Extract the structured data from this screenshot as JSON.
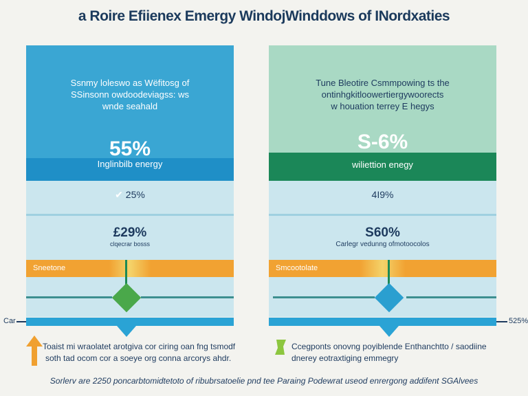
{
  "title": "a Roire Efiienex Emergy WindojWinddows of INordxaties",
  "left": {
    "color_top": "#3aa6d3",
    "color_band": "#1f8fc7",
    "description": [
      "Ssnmy loleswo as Wëfitosg of",
      "SSinsonn owdoodeviagss: ws",
      "wnde seahald"
    ],
    "big_stat": "55%",
    "band_label": "Inglinbilb energy",
    "row1": "25%",
    "row2_value": "£29%",
    "row2_label": "clqecrar bosss",
    "orange_label": "Sneetone",
    "marker_color": "#4aa84a"
  },
  "right": {
    "color_top": "#a9d9c4",
    "color_band": "#1b8758",
    "description": [
      "Tune Bleotire Csmmpowing ts the",
      "ontinhgkitloowertiergywoorects",
      "w houation terrey E hegys"
    ],
    "big_stat": "S-6%",
    "band_label": "wiliettion enegy",
    "row1": "4I9%",
    "row2_value": "S60%",
    "row2_label": "Carlegr vedunng ofmotoocolos",
    "orange_label": "Smcootolate",
    "marker_color": "#2a9fd0"
  },
  "side_labels": {
    "left": "Car",
    "right": "525%"
  },
  "notes": {
    "left": [
      "Toaist mi wraolatet arotgiva cor ciring oan fng tsmodf",
      "soth tad ocom cor a soeye org conna arcorys ahdr."
    ],
    "right": [
      "Ccegponts onovng poyiblende Enthanchtto / saodiine",
      "dnerey eotraxtiging emmegry"
    ]
  },
  "footer": "Sorlerv are 2250 poncarbtomidtetoto of ribubrsatoelie pnd tee Paraing Podewrat useod enrergong addifent SGAlvees"
}
